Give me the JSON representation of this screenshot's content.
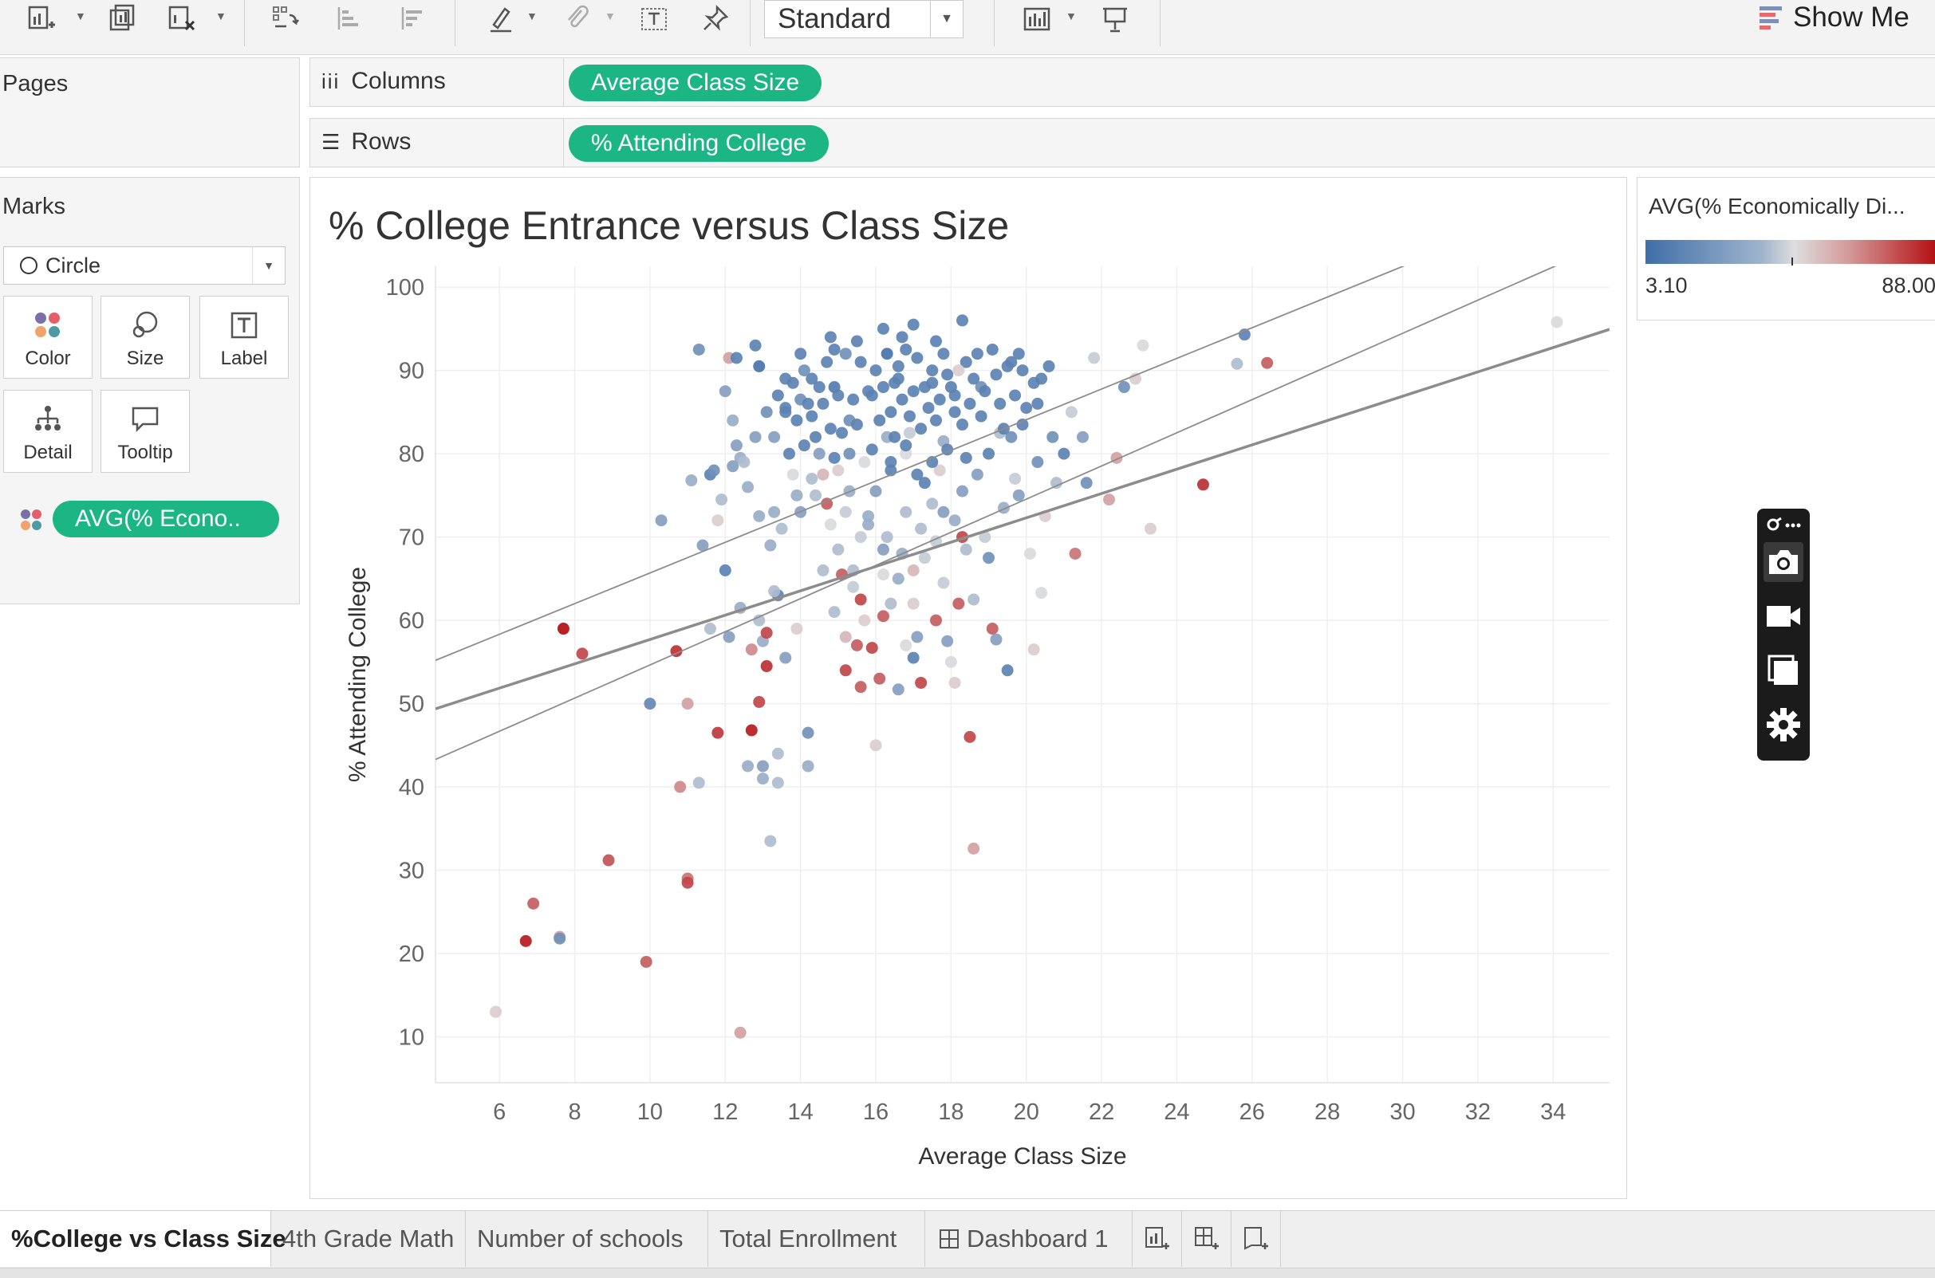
{
  "toolbar": {
    "view_size": "Standard",
    "show_me": "Show Me",
    "icons": [
      "new-worksheet-icon",
      "duplicate-sheet-icon",
      "clear-sheet-icon",
      "swap-icon",
      "sort-ascending-icon",
      "sort-descending-icon",
      "highlight-icon",
      "group-icon",
      "label-icon",
      "pin-icon",
      "chart-type-icon",
      "presentation-icon"
    ]
  },
  "shelves": {
    "pages_label": "Pages",
    "columns_label": "Columns",
    "rows_label": "Rows",
    "columns_pill": "Average Class Size",
    "rows_pill": "% Attending College"
  },
  "marks": {
    "title": "Marks",
    "type": "Circle",
    "cards": [
      {
        "label": "Color",
        "icon": "color-icon"
      },
      {
        "label": "Size",
        "icon": "size-icon"
      },
      {
        "label": "Label",
        "icon": "label-icon"
      },
      {
        "label": "Detail",
        "icon": "detail-icon"
      },
      {
        "label": "Tooltip",
        "icon": "tooltip-icon"
      }
    ],
    "color_pill": "AVG(% Econo.."
  },
  "legend": {
    "title": "AVG(% Economically Di...",
    "min": "3.10",
    "max": "88.00"
  },
  "colors": {
    "pill": "#1bb683",
    "low": "#3f6ea8",
    "mid": "#dedede",
    "high": "#b40d10"
  },
  "chart_data": {
    "type": "scatter",
    "title": "% College Entrance versus Class Size",
    "xlabel": "Average Class Size",
    "ylabel": "% Attending College",
    "xlim": [
      4.3,
      35.5
    ],
    "ylim": [
      4.5,
      102.5
    ],
    "x_ticks": [
      6,
      8,
      10,
      12,
      14,
      16,
      18,
      20,
      22,
      24,
      26,
      28,
      30,
      32,
      34
    ],
    "y_ticks": [
      10,
      20,
      30,
      40,
      50,
      60,
      70,
      80,
      90,
      100
    ],
    "grid": true,
    "color_field": "AVG(% Economically Disadvantaged)",
    "color_range": [
      3.1,
      88.0
    ],
    "trend_line": {
      "slope": 1.46,
      "intercept": 43.1
    },
    "confidence_band": {
      "upper_at_xmin": 55.2,
      "upper_at_xmax": 112.6,
      "lower_at_xmin": 43.3,
      "lower_at_xmax": 105.4
    },
    "points": [
      [
        5.9,
        13,
        45
      ],
      [
        6.7,
        21.5,
        85
      ],
      [
        6.9,
        26,
        70
      ],
      [
        7.6,
        22,
        55
      ],
      [
        7.6,
        21.8,
        15
      ],
      [
        7.7,
        59,
        88
      ],
      [
        8.2,
        56,
        75
      ],
      [
        8.9,
        31.2,
        72
      ],
      [
        9.9,
        19,
        70
      ],
      [
        10,
        50,
        12
      ],
      [
        10.3,
        72,
        20
      ],
      [
        10.7,
        56.3,
        80
      ],
      [
        10.8,
        40,
        60
      ],
      [
        11,
        50,
        55
      ],
      [
        11,
        29,
        65
      ],
      [
        11,
        28.5,
        75
      ],
      [
        11.3,
        40.5,
        30
      ],
      [
        11.1,
        76.8,
        25
      ],
      [
        11.3,
        92.5,
        15
      ],
      [
        11.4,
        69,
        20
      ],
      [
        11.6,
        77.5,
        10
      ],
      [
        11.7,
        78,
        15
      ],
      [
        11.8,
        46.5,
        78
      ],
      [
        11.8,
        72,
        45
      ],
      [
        11.9,
        74.5,
        30
      ],
      [
        12,
        66,
        10
      ],
      [
        12.1,
        58,
        20
      ],
      [
        12,
        87.5,
        20
      ],
      [
        12.1,
        91.5,
        55
      ],
      [
        12.2,
        84,
        25
      ],
      [
        12.3,
        81,
        20
      ],
      [
        12.3,
        91.5,
        10
      ],
      [
        12.4,
        79.5,
        25
      ],
      [
        12.4,
        10.5,
        55
      ],
      [
        12.6,
        42.5,
        25
      ],
      [
        12.7,
        46.8,
        85
      ],
      [
        12.7,
        56.5,
        60
      ],
      [
        12.8,
        93,
        10
      ],
      [
        12.9,
        90.5,
        5
      ],
      [
        12.9,
        50.2,
        75
      ],
      [
        12.9,
        60,
        30
      ],
      [
        13,
        57.5,
        25
      ],
      [
        13,
        42.5,
        20
      ],
      [
        13,
        41,
        25
      ],
      [
        13.1,
        58.5,
        75
      ],
      [
        13.1,
        54.5,
        80
      ],
      [
        13.2,
        33.5,
        30
      ],
      [
        13.3,
        73,
        25
      ],
      [
        13.3,
        82,
        20
      ],
      [
        13.4,
        40.5,
        30
      ],
      [
        13.4,
        44,
        30
      ],
      [
        13.4,
        63,
        10
      ],
      [
        13.6,
        85,
        10
      ],
      [
        13.6,
        55.5,
        20
      ],
      [
        13.8,
        77.5,
        40
      ],
      [
        13.9,
        59,
        45
      ],
      [
        14,
        73,
        20
      ],
      [
        14,
        86.5,
        15
      ],
      [
        14.2,
        42.5,
        25
      ],
      [
        14.2,
        46.5,
        15
      ],
      [
        14.2,
        86,
        10
      ],
      [
        14.3,
        89,
        10
      ],
      [
        14.4,
        75,
        30
      ],
      [
        14.5,
        80,
        20
      ],
      [
        14.6,
        77.5,
        50
      ],
      [
        14.7,
        74,
        70
      ],
      [
        14.8,
        71.5,
        40
      ],
      [
        14.9,
        88,
        8
      ],
      [
        14.9,
        92.5,
        10
      ],
      [
        15,
        68.5,
        30
      ],
      [
        15,
        78,
        45
      ],
      [
        15.1,
        65.5,
        70
      ],
      [
        15.2,
        54,
        75
      ],
      [
        15.2,
        58,
        50
      ],
      [
        15.3,
        84,
        15
      ],
      [
        15.3,
        75.5,
        25
      ],
      [
        15.4,
        66,
        30
      ],
      [
        15.5,
        57,
        70
      ],
      [
        15.6,
        70,
        35
      ],
      [
        15.6,
        52,
        70
      ],
      [
        15.6,
        62.5,
        75
      ],
      [
        15.7,
        60,
        45
      ],
      [
        15.7,
        79,
        40
      ],
      [
        15.8,
        72.5,
        25
      ],
      [
        15.9,
        56.7,
        75
      ],
      [
        15.9,
        87,
        10
      ],
      [
        16,
        75.5,
        20
      ],
      [
        16,
        45,
        45
      ],
      [
        16.1,
        53,
        70
      ],
      [
        16.2,
        60.5,
        70
      ],
      [
        16.2,
        68.5,
        20
      ],
      [
        16.3,
        82,
        25
      ],
      [
        16.4,
        62,
        30
      ],
      [
        16.4,
        79,
        10
      ],
      [
        16.5,
        88.5,
        10
      ],
      [
        16.6,
        51.7,
        20
      ],
      [
        16.6,
        65,
        25
      ],
      [
        16.7,
        94,
        10
      ],
      [
        16.8,
        80,
        40
      ],
      [
        16.8,
        73,
        30
      ],
      [
        16.9,
        82.5,
        35
      ],
      [
        17,
        55.5,
        10
      ],
      [
        17,
        66,
        50
      ],
      [
        17.1,
        58,
        20
      ],
      [
        17.2,
        52.5,
        75
      ],
      [
        17.3,
        67.5,
        35
      ],
      [
        17.3,
        76.5,
        10
      ],
      [
        17.5,
        74,
        30
      ],
      [
        17.6,
        60,
        70
      ],
      [
        17.7,
        78,
        45
      ],
      [
        17.8,
        81.5,
        25
      ],
      [
        17.8,
        73,
        20
      ],
      [
        17.9,
        57.5,
        20
      ],
      [
        18,
        55,
        40
      ],
      [
        18.1,
        52.5,
        45
      ],
      [
        18.1,
        85,
        10
      ],
      [
        18.2,
        62,
        70
      ],
      [
        18.3,
        70,
        75
      ],
      [
        18.3,
        75.5,
        20
      ],
      [
        18.4,
        91,
        10
      ],
      [
        18.5,
        46,
        75
      ],
      [
        18.6,
        32.6,
        55
      ],
      [
        18.7,
        77.5,
        20
      ],
      [
        18.8,
        88,
        15
      ],
      [
        18.9,
        70,
        35
      ],
      [
        19,
        67.5,
        15
      ],
      [
        19.1,
        59,
        70
      ],
      [
        19.2,
        57.7,
        20
      ],
      [
        19.3,
        82.5,
        30
      ],
      [
        19.5,
        54,
        10
      ],
      [
        19.6,
        82,
        15
      ],
      [
        19.7,
        77,
        35
      ],
      [
        19.9,
        83.5,
        10
      ],
      [
        20.1,
        68,
        40
      ],
      [
        20.2,
        56.5,
        45
      ],
      [
        20.3,
        86,
        10
      ],
      [
        20.4,
        63.3,
        40
      ],
      [
        20.5,
        72.5,
        45
      ],
      [
        20.6,
        90.5,
        10
      ],
      [
        20.7,
        82,
        15
      ],
      [
        20.8,
        76.5,
        30
      ],
      [
        21,
        80,
        10
      ],
      [
        21.2,
        85,
        35
      ],
      [
        21.3,
        68,
        65
      ],
      [
        21.5,
        82,
        20
      ],
      [
        21.6,
        76.5,
        15
      ],
      [
        21.8,
        91.5,
        35
      ],
      [
        22.2,
        74.5,
        55
      ],
      [
        22.4,
        79.5,
        55
      ],
      [
        22.6,
        88,
        15
      ],
      [
        22.9,
        89,
        45
      ],
      [
        23.1,
        93,
        40
      ],
      [
        23.3,
        71,
        45
      ],
      [
        24.7,
        76.3,
        80
      ],
      [
        25.6,
        90.8,
        30
      ],
      [
        25.8,
        94.3,
        10
      ],
      [
        26.4,
        90.9,
        70
      ],
      [
        34.1,
        95.8,
        40
      ],
      [
        17.6,
        93.5,
        10
      ],
      [
        17.1,
        91.5,
        10
      ],
      [
        16.8,
        92.5,
        10
      ],
      [
        16.3,
        92,
        5
      ],
      [
        16,
        90,
        10
      ],
      [
        15.6,
        91,
        10
      ],
      [
        15.2,
        92,
        15
      ],
      [
        14.7,
        91,
        10
      ],
      [
        14.5,
        88,
        10
      ],
      [
        14.1,
        90,
        15
      ],
      [
        13.8,
        88.5,
        10
      ],
      [
        18.2,
        90,
        45
      ],
      [
        18.6,
        89,
        10
      ],
      [
        19.2,
        89.5,
        10
      ],
      [
        19.6,
        91,
        10
      ],
      [
        19.9,
        90,
        10
      ],
      [
        20.2,
        88.5,
        10
      ],
      [
        17.5,
        90,
        10
      ],
      [
        17.9,
        89.5,
        10
      ],
      [
        16.6,
        89,
        10
      ],
      [
        16.2,
        88,
        10
      ],
      [
        15.8,
        87.5,
        10
      ],
      [
        15.4,
        86.5,
        10
      ],
      [
        15,
        87,
        10
      ],
      [
        14.6,
        86,
        10
      ],
      [
        14.3,
        84.5,
        10
      ],
      [
        13.9,
        84,
        10
      ],
      [
        13.6,
        85.5,
        10
      ],
      [
        17.3,
        88,
        10
      ],
      [
        17,
        87.5,
        10
      ],
      [
        16.7,
        86.5,
        10
      ],
      [
        16.4,
        85,
        10
      ],
      [
        18.9,
        87.5,
        10
      ],
      [
        19.3,
        86,
        10
      ],
      [
        19.7,
        87,
        10
      ],
      [
        20,
        85.5,
        10
      ],
      [
        18.5,
        86,
        10
      ],
      [
        18.1,
        87,
        10
      ],
      [
        17.7,
        86.5,
        10
      ],
      [
        17.4,
        85.5,
        10
      ],
      [
        16.9,
        84.5,
        10
      ],
      [
        16.1,
        84,
        10
      ],
      [
        15.5,
        83.5,
        10
      ],
      [
        15.1,
        82.5,
        10
      ],
      [
        14.8,
        83,
        10
      ],
      [
        14.4,
        82,
        10
      ],
      [
        14.1,
        81,
        10
      ],
      [
        13.7,
        80,
        10
      ],
      [
        17.2,
        83,
        10
      ],
      [
        17.6,
        84,
        10
      ],
      [
        18.3,
        83.5,
        10
      ],
      [
        18.8,
        84.5,
        10
      ],
      [
        19.4,
        83,
        10
      ],
      [
        16.5,
        82,
        10
      ],
      [
        16.8,
        81,
        10
      ],
      [
        15.9,
        80.5,
        10
      ],
      [
        15.3,
        80,
        15
      ],
      [
        14.9,
        79.5,
        10
      ],
      [
        17.9,
        80.5,
        10
      ],
      [
        18.4,
        79.5,
        10
      ],
      [
        19,
        80,
        10
      ],
      [
        16.4,
        78,
        10
      ],
      [
        17.1,
        77.5,
        10
      ],
      [
        17.5,
        79,
        10
      ],
      [
        12.5,
        79,
        30
      ],
      [
        12.8,
        82,
        20
      ],
      [
        13.1,
        85,
        15
      ],
      [
        13.4,
        87,
        10
      ],
      [
        13.6,
        89,
        10
      ],
      [
        14,
        92,
        10
      ],
      [
        14.8,
        94,
        10
      ],
      [
        16.2,
        95,
        10
      ],
      [
        18.3,
        96,
        10
      ],
      [
        19.1,
        92.5,
        10
      ],
      [
        19.8,
        92,
        10
      ],
      [
        20.4,
        89,
        10
      ],
      [
        17,
        95.5,
        10
      ],
      [
        15.5,
        93.5,
        10
      ],
      [
        18.7,
        92,
        10
      ],
      [
        16.6,
        90.5,
        10
      ],
      [
        17.8,
        92,
        10
      ],
      [
        14.3,
        77,
        30
      ],
      [
        13.9,
        75,
        25
      ],
      [
        13.5,
        71,
        30
      ],
      [
        13.2,
        69,
        25
      ],
      [
        12.9,
        72.5,
        25
      ],
      [
        12.6,
        76,
        25
      ],
      [
        12.2,
        78.5,
        20
      ],
      [
        15.2,
        73,
        35
      ],
      [
        15.8,
        71.5,
        25
      ],
      [
        16.3,
        70,
        30
      ],
      [
        16.7,
        68,
        25
      ],
      [
        17.2,
        71,
        30
      ],
      [
        17.6,
        69.5,
        35
      ],
      [
        18.1,
        72,
        25
      ],
      [
        18.4,
        68.5,
        30
      ],
      [
        19.4,
        73.5,
        25
      ],
      [
        19.8,
        75,
        20
      ],
      [
        20.3,
        79,
        15
      ],
      [
        14.6,
        66,
        30
      ],
      [
        15.4,
        64,
        35
      ],
      [
        16.2,
        65.5,
        40
      ],
      [
        17,
        62,
        45
      ],
      [
        17.8,
        64.5,
        35
      ],
      [
        18.6,
        62.5,
        30
      ],
      [
        13.3,
        63.5,
        30
      ],
      [
        14.9,
        61,
        30
      ],
      [
        16.8,
        57,
        40
      ],
      [
        12.4,
        61.5,
        25
      ],
      [
        11.6,
        59,
        30
      ],
      [
        17.5,
        88.5,
        10
      ],
      [
        18,
        88,
        10
      ],
      [
        19.5,
        90.5,
        10
      ]
    ]
  },
  "sheet_tabs": [
    "%College vs Class Size",
    "4th Grade Math",
    "Number of schools",
    "Total Enrollment",
    "Dashboard 1"
  ],
  "capture_tools": [
    "link-icon",
    "camera-icon",
    "video-icon",
    "window-icon",
    "gear-icon"
  ]
}
